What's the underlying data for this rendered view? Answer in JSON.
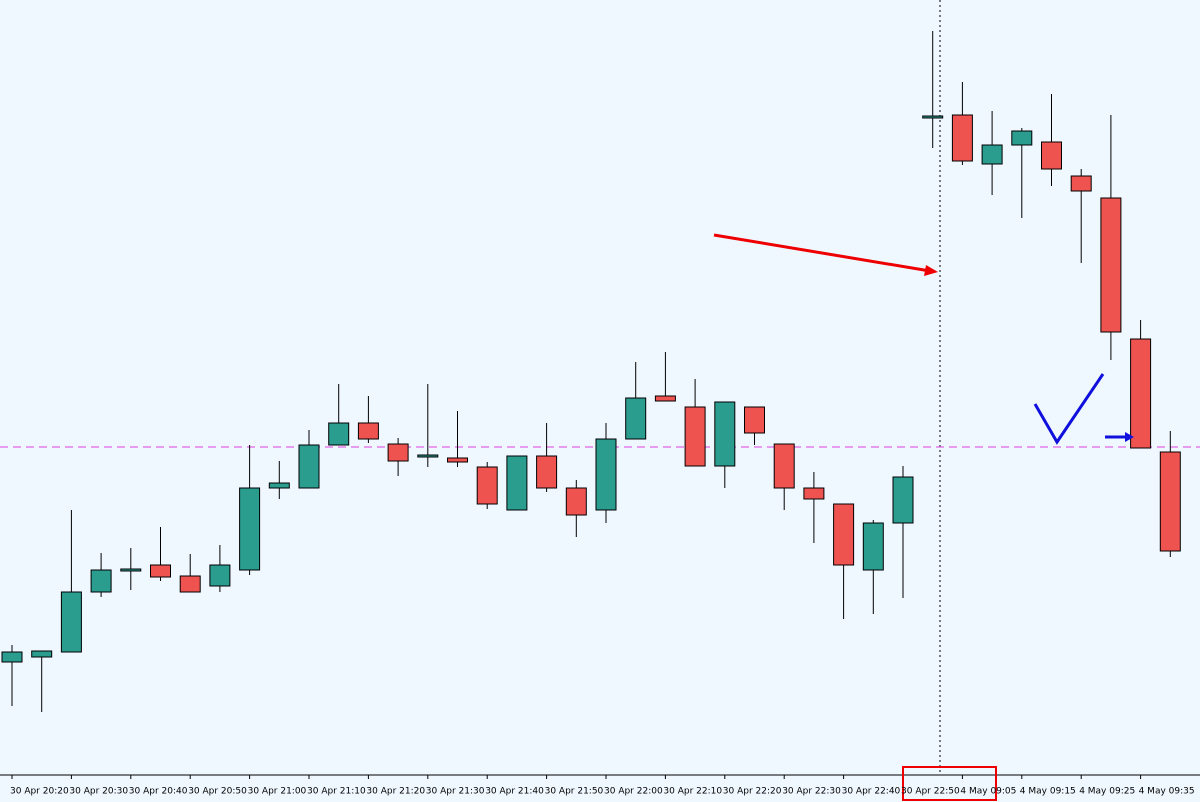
{
  "chart_data": {
    "type": "candlestick",
    "categories": [
      "30 Apr 20:20",
      null,
      "30 Apr 20:30",
      null,
      "30 Apr 20:40",
      null,
      "30 Apr 20:50",
      null,
      "30 Apr 21:00",
      null,
      "30 Apr 21:10",
      null,
      "30 Apr 21:20",
      null,
      "30 Apr 21:30",
      null,
      "30 Apr 21:40",
      null,
      "30 Apr 21:50",
      null,
      "30 Apr 22:00",
      null,
      "30 Apr 22:10",
      null,
      "30 Apr 22:20",
      null,
      "30 Apr 22:30",
      null,
      "30 Apr 22:40",
      null,
      "30 Apr 22:50",
      null,
      "4 May 09:05",
      null,
      "4 May 09:15",
      null,
      "4 May 09:25",
      null,
      "4 May 09:35",
      null
    ],
    "open": [
      113,
      118,
      123,
      183,
      206,
      210,
      199,
      189,
      205,
      287,
      287,
      330,
      352,
      331,
      320,
      317,
      308,
      265,
      319,
      287,
      265,
      336,
      379,
      368,
      309,
      368,
      331,
      287,
      271,
      205,
      252,
      657,
      660,
      611,
      630,
      633,
      599,
      577,
      436,
      323
    ],
    "high": [
      130,
      124,
      265,
      222,
      227,
      248,
      221,
      230,
      330,
      314,
      345,
      391,
      379,
      337,
      391,
      364,
      313,
      319,
      352,
      295,
      352,
      413,
      423,
      396,
      373,
      368,
      331,
      303,
      271,
      255,
      309,
      744,
      693,
      664,
      647,
      681,
      606,
      660,
      455,
      344
    ],
    "low": [
      69,
      63,
      123,
      178,
      185,
      194,
      183,
      183,
      200,
      276,
      287,
      330,
      332,
      299,
      308,
      308,
      266,
      265,
      283,
      238,
      252,
      336,
      374,
      309,
      287,
      330,
      265,
      232,
      156,
      161,
      177,
      627,
      610,
      580,
      557,
      589,
      512,
      415,
      327,
      218
    ],
    "close": [
      123,
      124,
      183,
      205,
      206,
      198,
      183,
      210,
      287,
      292,
      330,
      352,
      336,
      314,
      320,
      313,
      271,
      319,
      287,
      260,
      336,
      377,
      374,
      309,
      373,
      342,
      287,
      276,
      210,
      252,
      298,
      659,
      614,
      630,
      644,
      606,
      584,
      443,
      327,
      224
    ],
    "up_color": "#2a9d8f",
    "down_color": "#ef5350",
    "ylim": [
      0,
      775
    ],
    "level": 328
  }
}
